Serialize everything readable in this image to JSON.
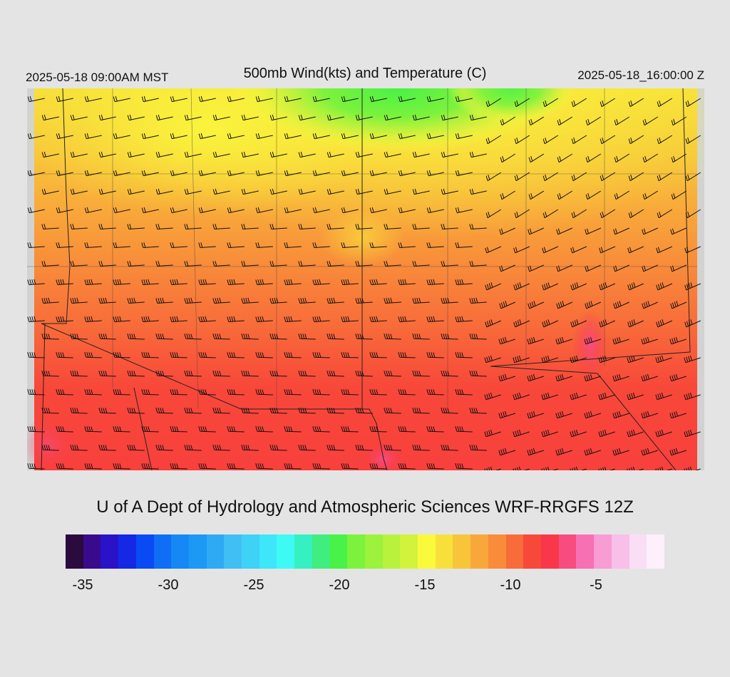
{
  "header": {
    "left_time": "2025-05-18 09:00AM MST",
    "title": "500mb Wind(kts) and Temperature (C)",
    "right_time": "2025-05-18_16:00:00 Z"
  },
  "credit": "U of A Dept of Hydrology and Atmospheric Sciences WRF-RRGFS 12Z",
  "colorbar": {
    "colors": [
      "#2b0a3d",
      "#3a0a8c",
      "#2a12c8",
      "#1428e6",
      "#0a4af5",
      "#0f6ef5",
      "#1588f5",
      "#1c99f5",
      "#2eaaf5",
      "#40bff5",
      "#3ed2f7",
      "#3ee6fa",
      "#3efaf5",
      "#35f0c0",
      "#40ee80",
      "#48f246",
      "#7cf23c",
      "#9cf23c",
      "#b8f23c",
      "#d2f23c",
      "#fafa3c",
      "#f8e03a",
      "#f8c43a",
      "#f8a83a",
      "#f88c3a",
      "#f86c3a",
      "#f8483a",
      "#f8384a",
      "#f84c80",
      "#f870b4",
      "#f89cd4",
      "#f8c0e8",
      "#fadef5",
      "#fdf0fc"
    ],
    "tick_labels": [
      "-35",
      "-30",
      "-25",
      "-20",
      "-15",
      "-10",
      "-5"
    ]
  },
  "map": {
    "field": "temperature_C",
    "overlay": "wind barbs (kts)"
  }
}
